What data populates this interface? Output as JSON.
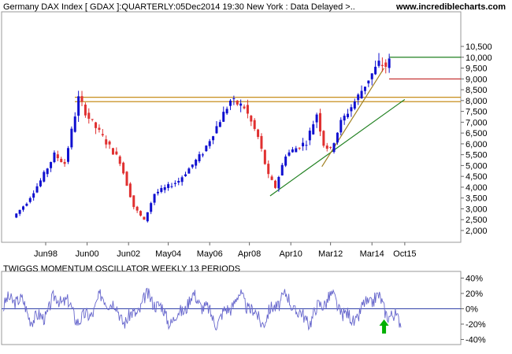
{
  "header": {
    "title": "Germany DAX Index [ GDAX ]:QUARTERLY:05Dec2014 19:30 New York : Data Delayed >..",
    "site": "www.incrediblecharts.com"
  },
  "oscillator": {
    "title": "TWIGGS MOMENTUM OSCILLATOR WEEKLY 13 PERIODS"
  },
  "colors": {
    "up": "#1010d0",
    "down": "#e03030",
    "support_orange": "#c08000",
    "trend_tan": "#a08020",
    "trend_green": "#208020",
    "resistance_green": "#208020",
    "level_red": "#c02020",
    "oscillator": "#6666cc",
    "grid": "#cccccc",
    "signal_arrow": "#00b000"
  },
  "chart_data": [
    {
      "type": "candlestick",
      "title": "Germany DAX Index [ GDAX ]",
      "y_ticks": [
        "2,000",
        "2,500",
        "3,000",
        "3,500",
        "4,000",
        "4,500",
        "5,000",
        "5,500",
        "6,000",
        "6,500",
        "7,000",
        "7,500",
        "8,000",
        "8,500",
        "9,000",
        "9,500",
        "10,000",
        "10,500"
      ],
      "x_ticks": [
        "Jun98",
        "Jun00",
        "Jun02",
        "May04",
        "May06",
        "Apr08",
        "Apr10",
        "Mar12",
        "Mar14",
        "Oct15"
      ],
      "ylim": [
        1500,
        10600
      ],
      "y_axis_position": "right",
      "grid": false,
      "horizontal_lines": [
        {
          "value": 8150,
          "color": "support_orange"
        },
        {
          "value": 7950,
          "color": "support_orange"
        },
        {
          "value": 9000,
          "color": "level_red"
        },
        {
          "value": 10000,
          "color": "resistance_green"
        }
      ],
      "trend_lines": [
        {
          "from": [
            "Apr09",
            3600
          ],
          "to": [
            "Oct15",
            8050
          ],
          "color": "trend_green"
        },
        {
          "from": [
            "Oct11",
            4950
          ],
          "to": [
            "Oct14",
            9500
          ],
          "color": "trend_tan"
        }
      ]
    },
    {
      "type": "line",
      "title": "TWIGGS MOMENTUM OSCILLATOR WEEKLY 13 PERIODS",
      "y_ticks": [
        "40%",
        "20%",
        "0%",
        "-20%",
        "-40%"
      ],
      "ylim": [
        -45,
        45
      ],
      "zero_line": true,
      "signal": {
        "type": "up-arrow",
        "at": "Oct14"
      }
    }
  ]
}
